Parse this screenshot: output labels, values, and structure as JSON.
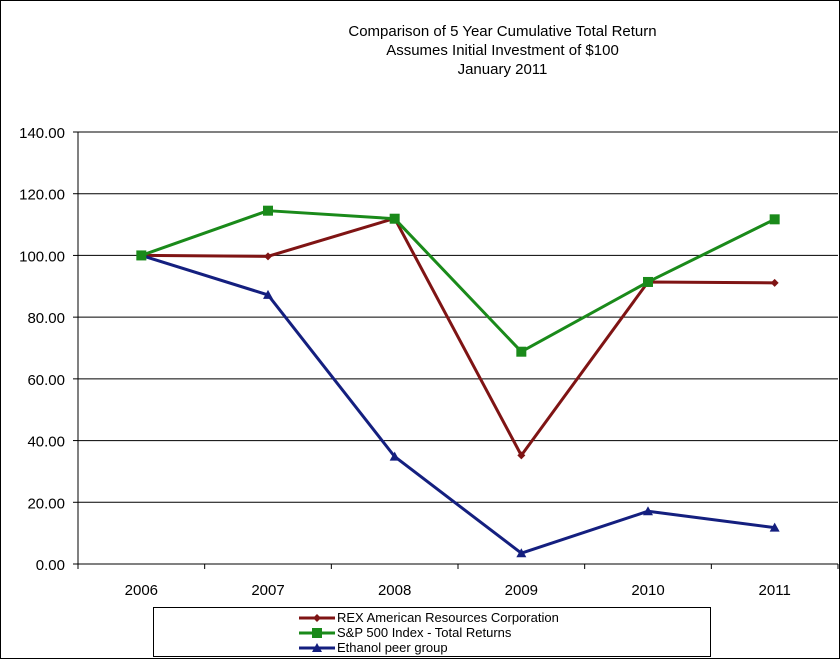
{
  "chart_data": {
    "type": "line",
    "title_lines": [
      "Comparison of 5 Year Cumulative Total Return",
      "Assumes Initial Investment of $100",
      "January 2011"
    ],
    "categories": [
      "2006",
      "2007",
      "2008",
      "2009",
      "2010",
      "2011"
    ],
    "ylim": [
      0,
      140
    ],
    "yticks": [
      "0.00",
      "20.00",
      "40.00",
      "60.00",
      "80.00",
      "100.00",
      "120.00",
      "140.00"
    ],
    "grid": true,
    "legend_position": "bottom",
    "series": [
      {
        "name": "REX American Resources Corporation",
        "values": [
          100,
          99.7,
          112,
          35.2,
          91.4,
          91.1
        ],
        "color": "#7f1414",
        "marker": "diamond"
      },
      {
        "name": "S&P 500 Index - Total Returns",
        "values": [
          100,
          114.5,
          111.9,
          68.8,
          91.4,
          111.7
        ],
        "color": "#1a8a1a",
        "marker": "square"
      },
      {
        "name": "Ethanol peer group",
        "values": [
          100,
          87.2,
          34.8,
          3.5,
          17.1,
          11.8
        ],
        "color": "#141f7f",
        "marker": "triangle"
      }
    ]
  }
}
